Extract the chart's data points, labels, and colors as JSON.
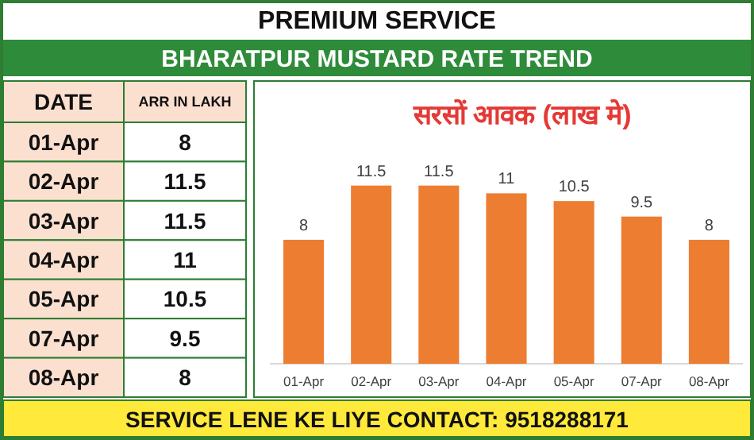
{
  "chart_data": [
    {
      "type": "other",
      "annotations": [
        "DATE",
        "ARR IN LAKH",
        "01-Apr",
        "8",
        "02-Apr",
        "11.5",
        "03-Apr",
        "11.5",
        "04-Apr",
        "11",
        "05-Apr",
        "10.5",
        "07-Apr",
        "9.5",
        "08-Apr",
        "8"
      ]
    },
    {
      "type": "bar",
      "title": "सरसों आवक (लाख मे)",
      "subtitle": "BHARATPUR MUSTARD RATE TREND",
      "categories": [
        "01-Apr",
        "02-Apr",
        "03-Apr",
        "04-Apr",
        "05-Apr",
        "07-Apr",
        "08-Apr"
      ],
      "values": [
        8,
        11.5,
        11.5,
        11,
        10.5,
        9.5,
        8
      ],
      "color": "#ed7d31",
      "data_labels": true,
      "annotations": [
        "PREMIUM SERVICE",
        "SERVICE LENE KE LIYE CONTACT: 9518288171"
      ]
    }
  ]
}
